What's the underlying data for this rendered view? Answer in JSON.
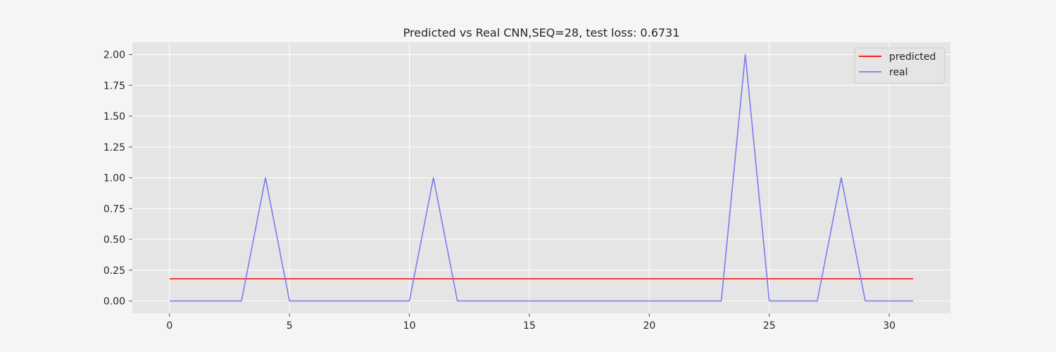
{
  "chart_data": {
    "type": "line",
    "title": "Predicted vs Real CNN,SEQ=28, test loss: 0.6731",
    "xlabel": "",
    "ylabel": "",
    "xlim": [
      -1.55,
      32.55
    ],
    "ylim": [
      -0.1,
      2.1
    ],
    "xticks": [
      0,
      5,
      10,
      15,
      20,
      25,
      30
    ],
    "yticks": [
      0.0,
      0.25,
      0.5,
      0.75,
      1.0,
      1.25,
      1.5,
      1.75,
      2.0
    ],
    "ytick_labels": [
      "0.00",
      "0.25",
      "0.50",
      "0.75",
      "1.00",
      "1.25",
      "1.50",
      "1.75",
      "2.00"
    ],
    "grid": true,
    "legend_position": "top-right",
    "x": [
      0,
      1,
      2,
      3,
      4,
      5,
      6,
      7,
      8,
      9,
      10,
      11,
      12,
      13,
      14,
      15,
      16,
      17,
      18,
      19,
      20,
      21,
      22,
      23,
      24,
      25,
      26,
      27,
      28,
      29,
      30,
      31
    ],
    "series": [
      {
        "name": "predicted",
        "color": "#ff0000",
        "values": [
          0.18,
          0.18,
          0.18,
          0.18,
          0.18,
          0.18,
          0.18,
          0.18,
          0.18,
          0.18,
          0.18,
          0.18,
          0.18,
          0.18,
          0.18,
          0.18,
          0.18,
          0.18,
          0.18,
          0.18,
          0.18,
          0.18,
          0.18,
          0.18,
          0.18,
          0.18,
          0.18,
          0.18,
          0.18,
          0.18,
          0.18,
          0.18
        ]
      },
      {
        "name": "real",
        "color": "#7b7bf2",
        "values": [
          0,
          0,
          0,
          0,
          1,
          0,
          0,
          0,
          0,
          0,
          0,
          1,
          0,
          0,
          0,
          0,
          0,
          0,
          0,
          0,
          0,
          0,
          0,
          0,
          2,
          0,
          0,
          0,
          1,
          0,
          0,
          0
        ]
      }
    ]
  },
  "style": {
    "plot_background": "#e5e5e5",
    "figure_background": "#f5f5f5",
    "grid_color": "#ffffff"
  }
}
